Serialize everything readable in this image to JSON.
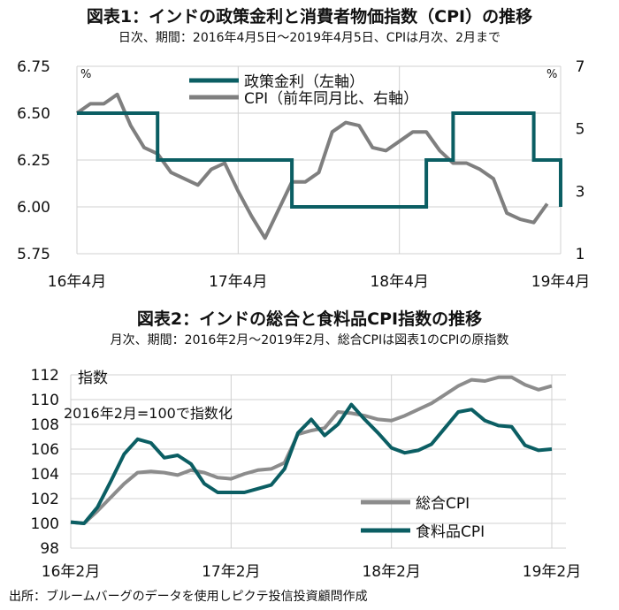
{
  "chart_data": [
    {
      "type": "line",
      "title": "図表1：インドの政策金利と消費者物価指数（CPI）の推移",
      "subtitle": "日次、期間：2016年4月5日～2019年4月5日、CPIは月次、2月まで",
      "left_unit": "%",
      "right_unit": "%",
      "x_ticks": [
        "16年4月",
        "17年4月",
        "18年4月",
        "19年4月"
      ],
      "y_left_ticks": [
        "6.75",
        "6.50",
        "6.25",
        "6.00",
        "5.75"
      ],
      "y_right_ticks": [
        "7",
        "5",
        "3",
        "1"
      ],
      "ylim_left": [
        5.75,
        6.75
      ],
      "ylim_right": [
        1,
        7
      ],
      "grid": true,
      "legend_position": "top-center",
      "series": [
        {
          "name": "政策金利（左軸）",
          "axis": "left",
          "color": "#0b5e63",
          "step": true,
          "points": [
            [
              0,
              6.5
            ],
            [
              6,
              6.5
            ],
            [
              6,
              6.25
            ],
            [
              16,
              6.25
            ],
            [
              16,
              6.0
            ],
            [
              26,
              6.0
            ],
            [
              26,
              6.25
            ],
            [
              28,
              6.25
            ],
            [
              28,
              6.5
            ],
            [
              34,
              6.5
            ],
            [
              34,
              6.25
            ],
            [
              36,
              6.25
            ],
            [
              36,
              6.0
            ]
          ]
        },
        {
          "name": "CPI（前年同月比、右軸）",
          "axis": "right",
          "color": "#7f7f7f",
          "step": false,
          "points": [
            [
              0,
              5.5
            ],
            [
              1,
              5.8
            ],
            [
              2,
              5.8
            ],
            [
              3,
              6.1
            ],
            [
              4,
              5.1
            ],
            [
              5,
              4.4
            ],
            [
              6,
              4.2
            ],
            [
              7,
              3.6
            ],
            [
              8,
              3.4
            ],
            [
              9,
              3.2
            ],
            [
              10,
              3.7
            ],
            [
              11,
              3.9
            ],
            [
              12,
              3.0
            ],
            [
              13,
              2.2
            ],
            [
              14,
              1.5
            ],
            [
              15,
              2.4
            ],
            [
              16,
              3.3
            ],
            [
              17,
              3.3
            ],
            [
              18,
              3.6
            ],
            [
              19,
              4.9
            ],
            [
              20,
              5.2
            ],
            [
              21,
              5.1
            ],
            [
              22,
              4.4
            ],
            [
              23,
              4.3
            ],
            [
              24,
              4.6
            ],
            [
              25,
              4.9
            ],
            [
              26,
              4.9
            ],
            [
              27,
              4.3
            ],
            [
              28,
              3.9
            ],
            [
              29,
              3.9
            ],
            [
              30,
              3.7
            ],
            [
              31,
              3.4
            ],
            [
              32,
              2.3
            ],
            [
              33,
              2.1
            ],
            [
              34,
              2.0
            ],
            [
              35,
              2.6
            ]
          ]
        }
      ]
    },
    {
      "type": "line",
      "title": "図表2：インドの総合と食料品CPI指数の推移",
      "subtitle": "月次、期間：2016年2月～2019年2月、総合CPIは図表1のCPIの原指数",
      "ylabel": "指数",
      "annotation": "2016年2月=100で指数化",
      "x_ticks": [
        "16年2月",
        "17年2月",
        "18年2月",
        "19年2月"
      ],
      "y_ticks": [
        "112",
        "110",
        "108",
        "106",
        "104",
        "102",
        "100",
        "98"
      ],
      "ylim": [
        98,
        112
      ],
      "grid": true,
      "legend_position": "bottom-right",
      "series": [
        {
          "name": "総合CPI",
          "color": "#8c8c8c",
          "values": [
            100.1,
            100.0,
            101.0,
            102.1,
            103.2,
            104.1,
            104.2,
            104.1,
            103.9,
            104.3,
            104.1,
            103.7,
            103.6,
            104.0,
            104.3,
            104.4,
            104.9,
            107.2,
            107.5,
            107.7,
            109.0,
            108.9,
            108.7,
            108.4,
            108.3,
            108.7,
            109.2,
            109.7,
            110.4,
            111.1,
            111.6,
            111.5,
            111.8,
            111.8,
            111.2,
            110.8,
            111.1
          ]
        },
        {
          "name": "食料品CPI",
          "color": "#0b5e63",
          "values": [
            100.1,
            100.0,
            101.3,
            103.4,
            105.6,
            106.8,
            106.5,
            105.3,
            105.5,
            104.8,
            103.2,
            102.5,
            102.5,
            102.5,
            102.8,
            103.1,
            104.4,
            107.3,
            108.4,
            107.1,
            108.0,
            109.6,
            108.4,
            107.3,
            106.1,
            105.7,
            105.9,
            106.4,
            107.7,
            109.0,
            109.2,
            108.3,
            107.9,
            107.8,
            106.3,
            105.9,
            106.0
          ]
        }
      ]
    }
  ],
  "source": "出所：ブルームバーグのデータを使用しピクテ投信投資顧問作成"
}
